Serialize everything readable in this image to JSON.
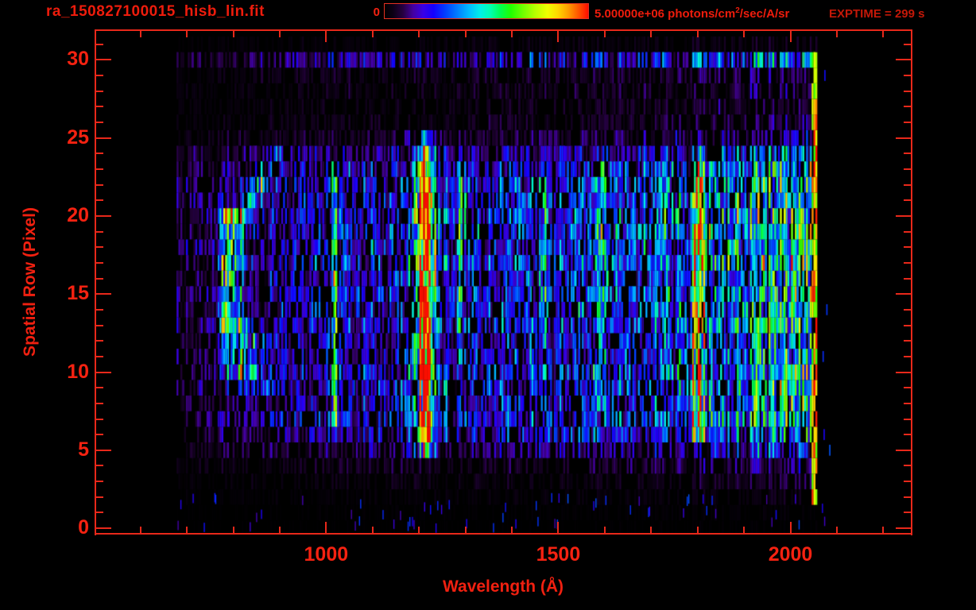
{
  "header": {
    "title": "ra_150827100015_hisb_lin.fit",
    "colorbar_min": "0",
    "colorbar_max": "5.00000e+06",
    "units_prefix": "5.00000e+06 photons/cm",
    "units_sup": "2",
    "units_suffix": "/sec/A/sr",
    "exptime": "EXPTIME = 299 s"
  },
  "axes": {
    "x_title": "Wavelength (Å)",
    "y_title": "Spatial Row (Pixel)",
    "x_major_ticks": [
      1000,
      1500,
      2000
    ],
    "x_minor_ticks": [
      600,
      700,
      800,
      900,
      1100,
      1200,
      1300,
      1400,
      1600,
      1700,
      1800,
      1900,
      2100,
      2200
    ],
    "y_major_ticks": [
      0,
      5,
      10,
      15,
      20,
      25,
      30
    ],
    "y_minor_step": 1
  },
  "chart_data": {
    "type": "heatmap",
    "title": "ra_150827100015_hisb_lin.fit",
    "xlabel": "Wavelength (Å)",
    "ylabel": "Spatial Row (Pixel)",
    "x_axis_range": [
      503,
      2261
    ],
    "y_axis_range": [
      -0.35,
      31.9
    ],
    "data_wl_range": [
      678,
      2058
    ],
    "rows": 32,
    "colorbar": {
      "min_value": 0,
      "max_value": 5000000,
      "units": "photons/cm2/sec/A/sr"
    },
    "exposure_seconds": 299,
    "palette_stops": [
      [
        0.0,
        "#000000"
      ],
      [
        0.04,
        "#0c0014"
      ],
      [
        0.09,
        "#260040"
      ],
      [
        0.14,
        "#4400a0"
      ],
      [
        0.19,
        "#3800e8"
      ],
      [
        0.24,
        "#1400ff"
      ],
      [
        0.3,
        "#0040ff"
      ],
      [
        0.36,
        "#0080ff"
      ],
      [
        0.42,
        "#00c0ff"
      ],
      [
        0.47,
        "#00f0e8"
      ],
      [
        0.52,
        "#00ffb0"
      ],
      [
        0.57,
        "#00ff50"
      ],
      [
        0.62,
        "#20ff00"
      ],
      [
        0.68,
        "#70ff00"
      ],
      [
        0.74,
        "#b8ff00"
      ],
      [
        0.8,
        "#f0ff00"
      ],
      [
        0.85,
        "#ffd800"
      ],
      [
        0.9,
        "#ffa000"
      ],
      [
        0.95,
        "#ff5800"
      ],
      [
        1.0,
        "#ff0e00"
      ]
    ],
    "row_profile": [
      0.012,
      0.02,
      0.05,
      0.09,
      0.16,
      0.3,
      0.46,
      0.56,
      0.5,
      0.53,
      0.57,
      0.53,
      0.5,
      0.59,
      0.55,
      0.58,
      0.56,
      0.61,
      0.56,
      0.59,
      0.61,
      0.58,
      0.56,
      0.5,
      0.38,
      0.2,
      0.13,
      0.12,
      0.13,
      0.14,
      0.4,
      0.07
    ],
    "continuum": [
      [
        678,
        0.2
      ],
      [
        740,
        0.24
      ],
      [
        800,
        0.28
      ],
      [
        870,
        0.33
      ],
      [
        950,
        0.36
      ],
      [
        1050,
        0.38
      ],
      [
        1200,
        0.42
      ],
      [
        1350,
        0.44
      ],
      [
        1500,
        0.46
      ],
      [
        1650,
        0.52
      ],
      [
        1750,
        0.6
      ],
      [
        1850,
        0.72
      ],
      [
        1950,
        0.8
      ],
      [
        2040,
        0.84
      ],
      [
        2058,
        0.85
      ]
    ],
    "features": [
      {
        "id": "line-1216-core",
        "wl": 1216,
        "sigma": 8,
        "amp": 1.55,
        "rows": [
          4.6,
          25.4
        ],
        "row_boost": [
          [
            6,
            11,
            1.25
          ],
          [
            19,
            23,
            1.18
          ]
        ]
      },
      {
        "id": "line-1216-halo",
        "wl": 1216,
        "sigma": 22,
        "amp": 0.45,
        "rows": [
          4.6,
          25.4
        ]
      },
      {
        "id": "band-793",
        "wl": 793,
        "sigma": 15,
        "amp": 0.85,
        "rows": [
          12.6,
          20.4
        ]
      },
      {
        "id": "diag-815-889",
        "type": "diagonal",
        "wl0": 815,
        "row0": 20.0,
        "wl1": 889,
        "row1": 23.6,
        "sigma": 13,
        "amp": 0.52
      },
      {
        "id": "tail-805",
        "wl": 805,
        "sigma": 20,
        "amp": 0.5,
        "rows": [
          9.6,
          13.2
        ]
      },
      {
        "id": "tail-ext-855",
        "wl": 855,
        "sigma": 30,
        "amp": 0.26,
        "rows": [
          8.6,
          12.4
        ]
      },
      {
        "id": "line-1019",
        "wl": 1019,
        "sigma": 5,
        "amp": 0.5,
        "rows": [
          5.6,
          23.4
        ]
      },
      {
        "id": "band-1293",
        "wl": 1293,
        "sigma": 9,
        "amp": 0.4,
        "rows": [
          10.6,
          23.4
        ]
      },
      {
        "id": "line-1468",
        "wl": 1468,
        "sigma": 5,
        "amp": 0.42,
        "rows": [
          6.6,
          23.4
        ]
      },
      {
        "id": "band-1591",
        "wl": 1591,
        "sigma": 8,
        "amp": 0.22,
        "rows": [
          7.6,
          23.4
        ]
      },
      {
        "id": "band-1801",
        "wl": 1801,
        "sigma": 13,
        "amp": 0.58,
        "rows": [
          5.6,
          23.4
        ]
      },
      {
        "id": "edge-2052",
        "type": "flat",
        "wl_range": [
          2044,
          2059
        ],
        "rows": [
          1.6,
          30.4
        ],
        "min": 0.6,
        "rand": 0.42,
        "dropout": 0.22
      }
    ],
    "noise": {
      "m0": 0.45,
      "m1": 0.9,
      "m3": 0.25,
      "dropout_a": 0.52,
      "dropout_b": 0.8,
      "dropout_min": 0.04,
      "dropout_max": 0.55,
      "dark_col_prob": 0.06,
      "dark_col_factor": 0.35
    },
    "specks": {
      "outside": {
        "wl_range": [
          2062,
          2098
        ],
        "rows": [
          2,
          30
        ],
        "probability": 0.32,
        "value": [
          0.2,
          0.38
        ]
      },
      "floor": {
        "rows": [
          0,
          2
        ],
        "count": 60,
        "value": [
          0.14,
          0.32
        ]
      }
    },
    "seed": 20150827
  }
}
